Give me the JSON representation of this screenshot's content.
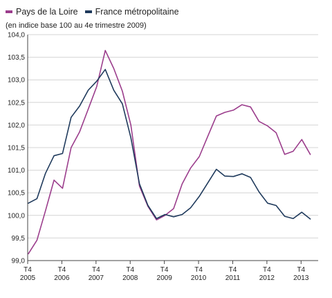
{
  "chart_data": {
    "type": "line",
    "title": "",
    "subtitle": "(en indice base 100 au 4e trimestre 2009)",
    "xlabel": "",
    "ylabel": "",
    "ylim": [
      99.0,
      104.0
    ],
    "yticks": [
      "99,0",
      "99,5",
      "100,0",
      "100,5",
      "101,0",
      "101,5",
      "102,0",
      "102,5",
      "103,0",
      "103,5",
      "104,0"
    ],
    "x_ticks": [
      {
        "q": "T4",
        "year": "2005"
      },
      {
        "q": "T4",
        "year": "2006"
      },
      {
        "q": "T4",
        "year": "2007"
      },
      {
        "q": "T4",
        "year": "2008"
      },
      {
        "q": "T4",
        "year": "2009"
      },
      {
        "q": "T4",
        "year": "2010"
      },
      {
        "q": "T4",
        "year": "2011"
      },
      {
        "q": "T4",
        "year": "2012"
      },
      {
        "q": "T4",
        "year": "2013"
      }
    ],
    "x": [
      "2005T4",
      "2006T1",
      "2006T2",
      "2006T3",
      "2006T4",
      "2007T1",
      "2007T2",
      "2007T3",
      "2007T4",
      "2008T1",
      "2008T2",
      "2008T3",
      "2008T4",
      "2009T1",
      "2009T2",
      "2009T3",
      "2009T4",
      "2010T1",
      "2010T2",
      "2010T3",
      "2010T4",
      "2011T1",
      "2011T2",
      "2011T3",
      "2011T4",
      "2012T1",
      "2012T2",
      "2012T3",
      "2012T4",
      "2013T1",
      "2013T2",
      "2013T3",
      "2013T4",
      "2014T1"
    ],
    "grid": true,
    "legend_position": "top-left",
    "series": [
      {
        "name": "Pays de la Loire",
        "color": "#9b3d8c",
        "values": [
          99.15,
          99.45,
          100.1,
          100.78,
          100.6,
          101.5,
          101.85,
          102.35,
          102.85,
          103.65,
          103.25,
          102.75,
          102.0,
          100.65,
          100.2,
          99.9,
          100.0,
          100.15,
          100.7,
          101.05,
          101.3,
          101.75,
          102.2,
          102.28,
          102.33,
          102.45,
          102.4,
          102.08,
          101.98,
          101.83,
          101.35,
          101.42,
          101.68,
          101.35
        ]
      },
      {
        "name": "France métropolitaine",
        "color": "#1f3a5c",
        "values": [
          100.27,
          100.37,
          100.93,
          101.32,
          101.37,
          102.17,
          102.42,
          102.77,
          102.97,
          103.23,
          102.77,
          102.47,
          101.72,
          100.7,
          100.22,
          99.93,
          100.02,
          99.97,
          100.02,
          100.17,
          100.42,
          100.72,
          101.02,
          100.87,
          100.86,
          100.92,
          100.84,
          100.52,
          100.27,
          100.22,
          99.98,
          99.93,
          100.07,
          99.92
        ]
      }
    ]
  }
}
